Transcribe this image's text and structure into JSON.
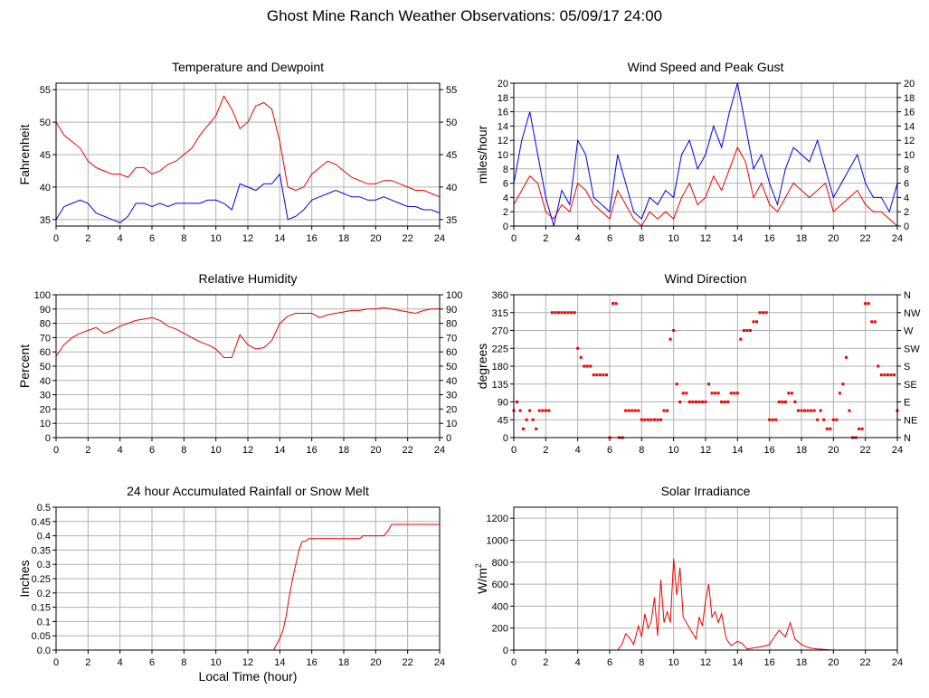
{
  "page": {
    "title": "Ghost Mine Ranch Weather Observations: 05/09/17 24:00"
  },
  "colors": {
    "red": "#ee0000",
    "blue": "#0000ee",
    "grid": "#b0b0b0"
  },
  "chart_data": [
    {
      "id": "temp",
      "type": "line",
      "title": "Temperature and Dewpoint",
      "ylabel": "Fahrenheit",
      "xlim": [
        0,
        24
      ],
      "ylim": [
        34,
        56
      ],
      "xticks": [
        0,
        2,
        4,
        6,
        8,
        10,
        12,
        14,
        16,
        18,
        20,
        22,
        24
      ],
      "yticks": [
        35,
        40,
        45,
        50,
        55
      ],
      "right_axis": true,
      "grid": true,
      "series": [
        {
          "color": "#ee0000",
          "x": [
            0,
            0.5,
            1,
            1.5,
            2,
            2.5,
            3,
            3.5,
            4,
            4.5,
            5,
            5.5,
            6,
            6.5,
            7,
            7.5,
            8,
            8.5,
            9,
            9.5,
            10,
            10.5,
            11,
            11.5,
            12,
            12.5,
            13,
            13.5,
            14,
            14.5,
            15,
            15.5,
            16,
            16.5,
            17,
            17.5,
            18,
            18.5,
            19,
            19.5,
            20,
            20.5,
            21,
            21.5,
            22,
            22.5,
            23,
            23.5,
            24
          ],
          "y": [
            50,
            48,
            47,
            46,
            44,
            43,
            42.5,
            42,
            42,
            41.5,
            43,
            43,
            42,
            42.5,
            43.5,
            44,
            45,
            46,
            48,
            49.5,
            51,
            54,
            52,
            49,
            50,
            52.5,
            53,
            52,
            47,
            40,
            39.5,
            40,
            42,
            43,
            44,
            43.5,
            42.5,
            41.5,
            41,
            40.5,
            40.5,
            41,
            41,
            40.5,
            40,
            39.5,
            39.5,
            39,
            38.5
          ]
        },
        {
          "color": "#0000ee",
          "x": [
            0,
            0.5,
            1,
            1.5,
            2,
            2.5,
            3,
            3.5,
            4,
            4.5,
            5,
            5.5,
            6,
            6.5,
            7,
            7.5,
            8,
            8.5,
            9,
            9.5,
            10,
            10.5,
            11,
            11.5,
            12,
            12.5,
            13,
            13.5,
            14,
            14.5,
            15,
            15.5,
            16,
            16.5,
            17,
            17.5,
            18,
            18.5,
            19,
            19.5,
            20,
            20.5,
            21,
            21.5,
            22,
            22.5,
            23,
            23.5,
            24
          ],
          "y": [
            35,
            37,
            37.5,
            38,
            37.5,
            36,
            35.5,
            35,
            34.5,
            35.5,
            37.5,
            37.5,
            37,
            37.5,
            37,
            37.5,
            37.5,
            37.5,
            37.5,
            38,
            38,
            37.5,
            36.5,
            40.5,
            40,
            39.5,
            40.5,
            40.5,
            42,
            35,
            35.5,
            36.5,
            38,
            38.5,
            39,
            39.5,
            39,
            38.5,
            38.5,
            38,
            38,
            38.5,
            38,
            37.5,
            37,
            37,
            36.5,
            36.5,
            36
          ]
        }
      ]
    },
    {
      "id": "wind",
      "type": "line",
      "title": "Wind Speed and Peak Gust",
      "ylabel": "miles/hour",
      "xlim": [
        0,
        24
      ],
      "ylim": [
        0,
        20
      ],
      "xticks": [
        0,
        2,
        4,
        6,
        8,
        10,
        12,
        14,
        16,
        18,
        20,
        22,
        24
      ],
      "yticks": [
        0,
        2,
        4,
        6,
        8,
        10,
        12,
        14,
        16,
        18,
        20
      ],
      "right_axis": true,
      "grid": true,
      "series": [
        {
          "color": "#ee0000",
          "x": [
            0,
            0.5,
            1,
            1.5,
            2,
            2.5,
            3,
            3.5,
            4,
            4.5,
            5,
            5.5,
            6,
            6.5,
            7,
            7.5,
            8,
            8.5,
            9,
            9.5,
            10,
            10.5,
            11,
            11.5,
            12,
            12.5,
            13,
            13.5,
            14,
            14.5,
            15,
            15.5,
            16,
            16.5,
            17,
            17.5,
            18,
            18.5,
            19,
            19.5,
            20,
            20.5,
            21,
            21.5,
            22,
            22.5,
            23,
            23.5,
            24
          ],
          "y": [
            3,
            5,
            7,
            6,
            2,
            1,
            3,
            2,
            6,
            5,
            3,
            2,
            1,
            5,
            3,
            1,
            0,
            2,
            1,
            2,
            1,
            4,
            6,
            3,
            4,
            7,
            5,
            8,
            11,
            9,
            4,
            6,
            3,
            2,
            4,
            6,
            5,
            4,
            5,
            6,
            2,
            3,
            4,
            5,
            3,
            2,
            2,
            1,
            0
          ]
        },
        {
          "color": "#0000ee",
          "x": [
            0,
            0.5,
            1,
            1.5,
            2,
            2.5,
            3,
            3.5,
            4,
            4.5,
            5,
            5.5,
            6,
            6.5,
            7,
            7.5,
            8,
            8.5,
            9,
            9.5,
            10,
            10.5,
            11,
            11.5,
            12,
            12.5,
            13,
            13.5,
            14,
            14.5,
            15,
            15.5,
            16,
            16.5,
            17,
            17.5,
            18,
            18.5,
            19,
            19.5,
            20,
            20.5,
            21,
            21.5,
            22,
            22.5,
            23,
            23.5,
            24
          ],
          "y": [
            6,
            12,
            16,
            10,
            4,
            0,
            5,
            3,
            12,
            10,
            4,
            3,
            2,
            10,
            6,
            2,
            1,
            4,
            3,
            5,
            4,
            10,
            12,
            8,
            10,
            14,
            11,
            16,
            20,
            14,
            8,
            10,
            6,
            3,
            8,
            11,
            10,
            9,
            12,
            8,
            4,
            6,
            8,
            10,
            6,
            4,
            4,
            2,
            6
          ]
        }
      ]
    },
    {
      "id": "rh",
      "type": "line",
      "title": "Relative Humidity",
      "ylabel": "Percent",
      "xlim": [
        0,
        24
      ],
      "ylim": [
        0,
        100
      ],
      "xticks": [
        0,
        2,
        4,
        6,
        8,
        10,
        12,
        14,
        16,
        18,
        20,
        22,
        24
      ],
      "yticks": [
        0,
        10,
        20,
        30,
        40,
        50,
        60,
        70,
        80,
        90,
        100
      ],
      "right_axis": true,
      "grid": true,
      "series": [
        {
          "color": "#ee0000",
          "x": [
            0,
            0.5,
            1,
            1.5,
            2,
            2.5,
            3,
            3.5,
            4,
            4.5,
            5,
            5.5,
            6,
            6.5,
            7,
            7.5,
            8,
            8.5,
            9,
            9.5,
            10,
            10.5,
            11,
            11.5,
            12,
            12.5,
            13,
            13.5,
            14,
            14.5,
            15,
            15.5,
            16,
            16.5,
            17,
            17.5,
            18,
            18.5,
            19,
            19.5,
            20,
            20.5,
            21,
            21.5,
            22,
            22.5,
            23,
            23.5,
            24
          ],
          "y": [
            57,
            65,
            70,
            73,
            75,
            77,
            73,
            75,
            78,
            80,
            82,
            83,
            84,
            82,
            78,
            76,
            73,
            70,
            67,
            65,
            62,
            56,
            56,
            72,
            65,
            62,
            63,
            68,
            80,
            85,
            87,
            87,
            87,
            84,
            86,
            87,
            88,
            89,
            89,
            90,
            90,
            91,
            90,
            89,
            88,
            87,
            89,
            90,
            90
          ]
        }
      ]
    },
    {
      "id": "dir",
      "type": "scatter",
      "title": "Wind Direction",
      "ylabel": "degrees",
      "xlim": [
        0,
        24
      ],
      "ylim": [
        0,
        360
      ],
      "xticks": [
        0,
        2,
        4,
        6,
        8,
        10,
        12,
        14,
        16,
        18,
        20,
        22,
        24
      ],
      "yticks": [
        0,
        45,
        90,
        135,
        180,
        225,
        270,
        315,
        360
      ],
      "right_labels": [
        "N",
        "NE",
        "E",
        "SE",
        "S",
        "SW",
        "W",
        "NW",
        "N"
      ],
      "grid": true,
      "series": [
        {
          "color": "#ee0000",
          "x": [
            0,
            0.2,
            0.4,
            0.6,
            0.8,
            1.0,
            1.2,
            1.4,
            1.6,
            1.8,
            2.0,
            2.2,
            2.4,
            2.6,
            2.8,
            3.0,
            3.2,
            3.4,
            3.6,
            3.8,
            4.0,
            4.2,
            4.4,
            4.6,
            4.8,
            5.0,
            5.2,
            5.4,
            5.6,
            5.8,
            6.0,
            6.2,
            6.4,
            6.6,
            6.8,
            7.0,
            7.2,
            7.4,
            7.6,
            7.8,
            8.0,
            8.2,
            8.4,
            8.6,
            8.8,
            9.0,
            9.2,
            9.4,
            9.6,
            9.8,
            10.0,
            10.2,
            10.4,
            10.6,
            10.8,
            11.0,
            11.2,
            11.4,
            11.6,
            11.8,
            12.0,
            12.2,
            12.4,
            12.6,
            12.8,
            13.0,
            13.2,
            13.4,
            13.6,
            13.8,
            14.0,
            14.2,
            14.4,
            14.6,
            14.8,
            15.0,
            15.2,
            15.4,
            15.6,
            15.8,
            16.0,
            16.2,
            16.4,
            16.6,
            16.8,
            17.0,
            17.2,
            17.4,
            17.6,
            17.8,
            18.0,
            18.2,
            18.4,
            18.6,
            18.8,
            19.0,
            19.2,
            19.4,
            19.6,
            19.8,
            20.0,
            20.2,
            20.4,
            20.6,
            20.8,
            21.0,
            21.2,
            21.4,
            21.6,
            21.8,
            22.0,
            22.2,
            22.4,
            22.6,
            22.8,
            23.0,
            23.2,
            23.4,
            23.6,
            23.8,
            24.0
          ],
          "y": [
            68,
            90,
            68,
            22,
            45,
            68,
            45,
            22,
            68,
            68,
            68,
            68,
            315,
            315,
            315,
            315,
            315,
            315,
            315,
            315,
            225,
            202,
            180,
            180,
            180,
            158,
            158,
            158,
            158,
            158,
            0,
            338,
            338,
            0,
            0,
            68,
            68,
            68,
            68,
            68,
            45,
            45,
            45,
            45,
            45,
            45,
            45,
            68,
            68,
            248,
            270,
            135,
            90,
            112,
            112,
            90,
            90,
            90,
            90,
            90,
            90,
            135,
            112,
            112,
            112,
            90,
            90,
            90,
            112,
            112,
            112,
            248,
            270,
            270,
            270,
            292,
            292,
            315,
            315,
            315,
            45,
            45,
            45,
            90,
            90,
            90,
            112,
            112,
            90,
            68,
            68,
            68,
            68,
            68,
            68,
            45,
            68,
            45,
            22,
            22,
            45,
            45,
            112,
            135,
            202,
            68,
            0,
            0,
            22,
            22,
            338,
            338,
            292,
            292,
            180,
            158,
            158,
            158,
            158,
            158,
            68
          ]
        }
      ]
    },
    {
      "id": "rain",
      "type": "line",
      "title": "24 hour Accumulated Rainfall or Snow Melt",
      "ylabel": "Inches",
      "xlabel": "Local Time (hour)",
      "xlim": [
        0,
        24
      ],
      "ylim": [
        0,
        0.5
      ],
      "xticks": [
        0,
        2,
        4,
        6,
        8,
        10,
        12,
        14,
        16,
        18,
        20,
        22,
        24
      ],
      "yticks": [
        0,
        0.05,
        0.1,
        0.15,
        0.2,
        0.25,
        0.3,
        0.35,
        0.4,
        0.45,
        0.5
      ],
      "ytick_labels": [
        "0.0",
        "0.05",
        "0.1",
        "0.15",
        "0.2",
        "0.25",
        "0.3",
        "0.35",
        "0.4",
        "0.45",
        "0.5"
      ],
      "grid": true,
      "series": [
        {
          "color": "#ee0000",
          "x": [
            0,
            13.6,
            13.8,
            14.0,
            14.2,
            14.4,
            14.6,
            14.8,
            15.0,
            15.2,
            15.4,
            15.6,
            15.8,
            16.2,
            17.5,
            18.0,
            19.0,
            19.2,
            20.5,
            20.8,
            21.0,
            24
          ],
          "y": [
            0,
            0,
            0.02,
            0.04,
            0.07,
            0.12,
            0.19,
            0.25,
            0.3,
            0.35,
            0.38,
            0.38,
            0.39,
            0.39,
            0.39,
            0.39,
            0.39,
            0.4,
            0.4,
            0.42,
            0.44,
            0.44
          ]
        }
      ]
    },
    {
      "id": "solar",
      "type": "line",
      "title": "Solar Irradiance",
      "ylabel": "W/m",
      "ylabel_sup": "2",
      "xlim": [
        0,
        24
      ],
      "ylim": [
        0,
        1300
      ],
      "xticks": [
        0,
        2,
        4,
        6,
        8,
        10,
        12,
        14,
        16,
        18,
        20,
        22,
        24
      ],
      "yticks": [
        0,
        200,
        400,
        600,
        800,
        1000,
        1200
      ],
      "grid": true,
      "series": [
        {
          "color": "#ee0000",
          "x": [
            0,
            6.5,
            6.8,
            7.0,
            7.3,
            7.5,
            7.8,
            8.0,
            8.2,
            8.4,
            8.6,
            8.8,
            9.0,
            9.2,
            9.4,
            9.6,
            9.8,
            10.0,
            10.2,
            10.4,
            10.6,
            10.8,
            11.0,
            11.2,
            11.4,
            11.6,
            11.8,
            12.0,
            12.2,
            12.4,
            12.6,
            12.8,
            13.0,
            13.3,
            13.6,
            14.0,
            14.3,
            14.6,
            15.0,
            15.5,
            16.0,
            16.3,
            16.6,
            17.0,
            17.3,
            17.6,
            18.0,
            18.5,
            19.0,
            19.5,
            20.0,
            24
          ],
          "y": [
            0,
            0,
            60,
            150,
            100,
            50,
            220,
            120,
            330,
            200,
            260,
            480,
            130,
            640,
            250,
            350,
            250,
            830,
            500,
            750,
            300,
            250,
            200,
            150,
            100,
            300,
            220,
            450,
            600,
            300,
            350,
            250,
            330,
            100,
            40,
            80,
            60,
            10,
            20,
            30,
            50,
            120,
            180,
            120,
            250,
            100,
            50,
            20,
            10,
            5,
            0,
            0
          ]
        }
      ]
    }
  ]
}
